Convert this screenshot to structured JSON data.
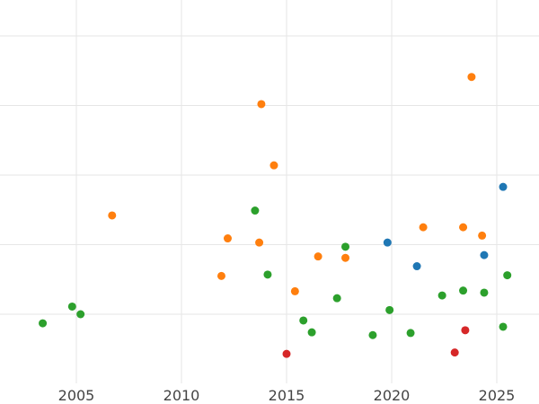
{
  "chart_data": {
    "type": "scatter",
    "title": "",
    "xlabel": "",
    "ylabel": "",
    "xlim": [
      2002.5,
      2026.8
    ],
    "ylim": [
      -0.9,
      4.5
    ],
    "grid": true,
    "x_ticks": [
      2005,
      2010,
      2015,
      2020,
      2025
    ],
    "x_tick_labels": [
      "2005",
      "2010",
      "2015",
      "2020",
      "2025"
    ],
    "y_gridlines": [
      0,
      1,
      2,
      3,
      4
    ],
    "y_tick_labels_visible": false,
    "series": [
      {
        "color": "#1f77b4",
        "points": [
          {
            "x": 2025.3,
            "y": 1.83
          },
          {
            "x": 2019.8,
            "y": 1.03
          },
          {
            "x": 2024.4,
            "y": 0.85
          },
          {
            "x": 2021.2,
            "y": 0.69
          }
        ]
      },
      {
        "color": "#ff7f0e",
        "points": [
          {
            "x": 2023.8,
            "y": 3.41
          },
          {
            "x": 2013.8,
            "y": 3.02
          },
          {
            "x": 2014.4,
            "y": 2.14
          },
          {
            "x": 2006.7,
            "y": 1.42
          },
          {
            "x": 2021.5,
            "y": 1.25
          },
          {
            "x": 2023.4,
            "y": 1.25
          },
          {
            "x": 2024.3,
            "y": 1.13
          },
          {
            "x": 2012.2,
            "y": 1.09
          },
          {
            "x": 2013.7,
            "y": 1.03
          },
          {
            "x": 2016.5,
            "y": 0.83
          },
          {
            "x": 2017.8,
            "y": 0.81
          },
          {
            "x": 2011.9,
            "y": 0.55
          },
          {
            "x": 2015.4,
            "y": 0.33
          }
        ]
      },
      {
        "color": "#2ca02c",
        "points": [
          {
            "x": 2013.5,
            "y": 1.49
          },
          {
            "x": 2017.8,
            "y": 0.97
          },
          {
            "x": 2014.1,
            "y": 0.57
          },
          {
            "x": 2025.5,
            "y": 0.56
          },
          {
            "x": 2023.4,
            "y": 0.34
          },
          {
            "x": 2024.4,
            "y": 0.31
          },
          {
            "x": 2022.4,
            "y": 0.27
          },
          {
            "x": 2017.4,
            "y": 0.23
          },
          {
            "x": 2004.8,
            "y": 0.11
          },
          {
            "x": 2019.9,
            "y": 0.06
          },
          {
            "x": 2005.2,
            "y": 0.0
          },
          {
            "x": 2003.4,
            "y": -0.13
          },
          {
            "x": 2015.8,
            "y": -0.09
          },
          {
            "x": 2025.3,
            "y": -0.18
          },
          {
            "x": 2016.2,
            "y": -0.26
          },
          {
            "x": 2020.9,
            "y": -0.27
          },
          {
            "x": 2019.1,
            "y": -0.3
          }
        ]
      },
      {
        "color": "#d62728",
        "points": [
          {
            "x": 2023.5,
            "y": -0.23
          },
          {
            "x": 2015.0,
            "y": -0.57
          },
          {
            "x": 2023.0,
            "y": -0.55
          }
        ]
      }
    ]
  }
}
